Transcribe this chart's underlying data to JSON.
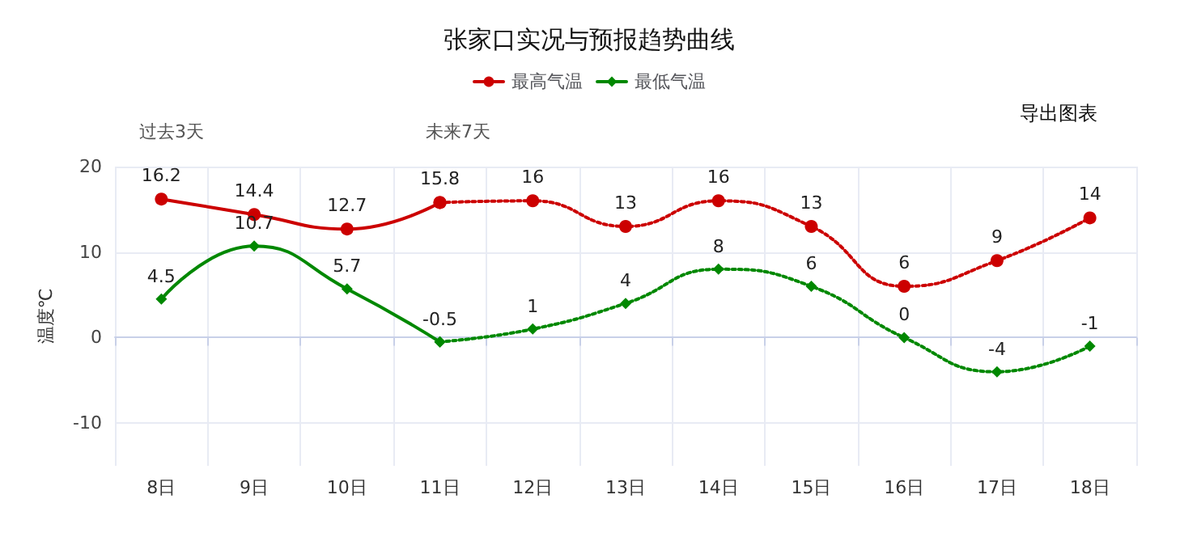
{
  "chart_data": {
    "type": "line",
    "title": "张家口实况与预报趋势曲线",
    "ylabel": "温度℃",
    "categories": [
      "8日",
      "9日",
      "10日",
      "11日",
      "12日",
      "13日",
      "14日",
      "15日",
      "16日",
      "17日",
      "18日"
    ],
    "series": [
      {
        "name": "最高气温",
        "color": "#cc0000",
        "marker": "circle",
        "line_style": "solid",
        "values": [
          16.2,
          14.4,
          12.7,
          15.8,
          null,
          null,
          null,
          null,
          null,
          null,
          null
        ],
        "value_labels": [
          "16.2",
          "14.4",
          "12.7",
          "15.8",
          null,
          null,
          null,
          null,
          null,
          null,
          null
        ]
      },
      {
        "color": "#cc0000",
        "marker": "circle",
        "line_style": "dotted",
        "values": [
          null,
          null,
          null,
          15.8,
          16,
          13,
          16,
          13,
          6,
          9,
          14
        ],
        "value_labels": [
          null,
          null,
          null,
          null,
          "16",
          "13",
          "16",
          "13",
          "6",
          "9",
          "14"
        ]
      },
      {
        "name": "最低气温",
        "color": "#008800",
        "marker": "diamond",
        "line_style": "solid",
        "values": [
          4.5,
          10.7,
          5.7,
          -0.5,
          null,
          null,
          null,
          null,
          null,
          null,
          null
        ],
        "value_labels": [
          "4.5",
          "10.7",
          "5.7",
          "-0.5",
          null,
          null,
          null,
          null,
          null,
          null,
          null
        ]
      },
      {
        "color": "#008800",
        "marker": "diamond",
        "line_style": "dotted",
        "values": [
          null,
          null,
          null,
          -0.5,
          1,
          4,
          8,
          6,
          0,
          -4,
          -1
        ],
        "value_labels": [
          null,
          null,
          null,
          null,
          "1",
          "4",
          "8",
          "6",
          "0",
          "-4",
          "-1"
        ]
      }
    ],
    "ylim": [
      -15,
      20
    ],
    "yticks": [
      -10,
      0,
      10,
      20
    ],
    "grid": true,
    "legend": "top",
    "annotations": [
      "过去3天",
      "未来7天",
      "导出图表"
    ]
  }
}
